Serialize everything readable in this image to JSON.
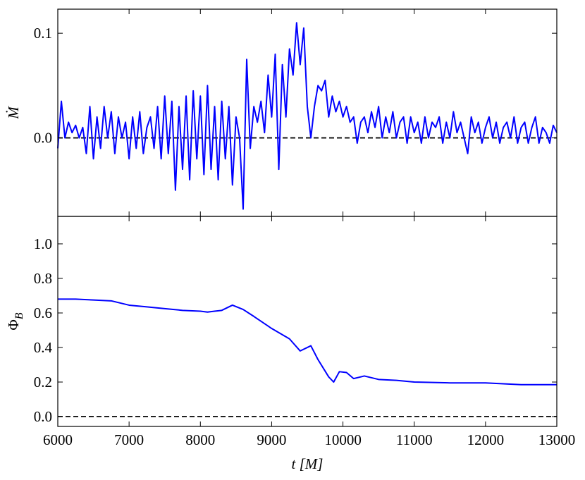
{
  "chart_data": [
    {
      "type": "line",
      "ylabel": "Ṁ",
      "xtick_labels": false,
      "hline": 0,
      "xlim": [
        6000,
        13000
      ],
      "xticks": [
        6000,
        7000,
        8000,
        9000,
        10000,
        11000,
        12000,
        13000
      ],
      "ylim": [
        -0.075,
        0.123
      ],
      "yticks": [
        {
          "value": 0,
          "label": "0.0"
        },
        0.1
      ],
      "series": [
        {
          "color": "#0000ff",
          "x": [
            6000,
            6050,
            6100,
            6150,
            6200,
            6250,
            6300,
            6350,
            6400,
            6450,
            6500,
            6550,
            6600,
            6650,
            6700,
            6750,
            6800,
            6850,
            6900,
            6950,
            7000,
            7050,
            7100,
            7150,
            7200,
            7250,
            7300,
            7350,
            7400,
            7450,
            7500,
            7550,
            7600,
            7650,
            7700,
            7750,
            7800,
            7850,
            7900,
            7950,
            8000,
            8050,
            8100,
            8150,
            8200,
            8250,
            8300,
            8350,
            8400,
            8450,
            8500,
            8550,
            8600,
            8650,
            8700,
            8750,
            8800,
            8850,
            8900,
            8950,
            9000,
            9050,
            9100,
            9150,
            9200,
            9250,
            9300,
            9350,
            9400,
            9450,
            9500,
            9550,
            9600,
            9650,
            9700,
            9750,
            9800,
            9850,
            9900,
            9950,
            10000,
            10050,
            10100,
            10150,
            10200,
            10250,
            10300,
            10350,
            10400,
            10450,
            10500,
            10550,
            10600,
            10650,
            10700,
            10750,
            10800,
            10850,
            10900,
            10950,
            11000,
            11050,
            11100,
            11150,
            11200,
            11250,
            11300,
            11350,
            11400,
            11450,
            11500,
            11550,
            11600,
            11650,
            11700,
            11750,
            11800,
            11850,
            11900,
            11950,
            12000,
            12050,
            12100,
            12150,
            12200,
            12250,
            12300,
            12350,
            12400,
            12450,
            12500,
            12550,
            12600,
            12650,
            12700,
            12750,
            12800,
            12850,
            12900,
            12950,
            13000
          ],
          "values": [
            -0.01,
            0.035,
            0.0,
            0.015,
            0.005,
            0.012,
            0.0,
            0.01,
            -0.015,
            0.03,
            -0.02,
            0.02,
            -0.01,
            0.03,
            0.0,
            0.025,
            -0.015,
            0.02,
            0.0,
            0.015,
            -0.02,
            0.02,
            -0.01,
            0.025,
            -0.015,
            0.01,
            0.02,
            -0.01,
            0.03,
            -0.02,
            0.04,
            -0.015,
            0.035,
            -0.05,
            0.03,
            -0.03,
            0.04,
            -0.04,
            0.045,
            -0.02,
            0.04,
            -0.035,
            0.05,
            -0.03,
            0.03,
            -0.04,
            0.035,
            -0.02,
            0.03,
            -0.045,
            0.02,
            0.0,
            -0.068,
            0.075,
            -0.01,
            0.03,
            0.015,
            0.035,
            0.005,
            0.06,
            0.02,
            0.08,
            -0.03,
            0.07,
            0.02,
            0.085,
            0.06,
            0.11,
            0.07,
            0.105,
            0.03,
            0.0,
            0.03,
            0.05,
            0.045,
            0.055,
            0.02,
            0.04,
            0.025,
            0.035,
            0.02,
            0.03,
            0.015,
            0.02,
            -0.005,
            0.015,
            0.02,
            0.005,
            0.025,
            0.01,
            0.03,
            0.0,
            0.02,
            0.005,
            0.025,
            0.0,
            0.015,
            0.02,
            -0.005,
            0.02,
            0.005,
            0.015,
            -0.005,
            0.02,
            0.0,
            0.015,
            0.01,
            0.02,
            -0.005,
            0.015,
            0.0,
            0.025,
            0.005,
            0.015,
            0.0,
            -0.015,
            0.02,
            0.005,
            0.015,
            -0.005,
            0.01,
            0.02,
            0.0,
            0.015,
            -0.005,
            0.01,
            0.015,
            0.0,
            0.02,
            -0.005,
            0.01,
            0.015,
            -0.005,
            0.01,
            0.02,
            -0.005,
            0.01,
            0.005,
            -0.005,
            0.012,
            0.005
          ]
        }
      ]
    },
    {
      "type": "line",
      "ylabel": "Φ",
      "ylabel_subscript": "B",
      "xlabel": "t [M]",
      "xtick_labels": true,
      "hline": 0,
      "xlim": [
        6000,
        13000
      ],
      "xticks": [
        6000,
        7000,
        8000,
        9000,
        10000,
        11000,
        12000,
        13000
      ],
      "ylim": [
        -0.057,
        1.159
      ],
      "yticks": [
        {
          "value": 0,
          "label": "0.0"
        },
        0.2,
        0.4,
        0.6,
        0.8,
        {
          "value": 1,
          "label": "1.0"
        }
      ],
      "series": [
        {
          "color": "#0000ff",
          "x": [
            6000,
            6250,
            6500,
            6750,
            7000,
            7250,
            7500,
            7750,
            8000,
            8100,
            8200,
            8300,
            8450,
            8600,
            8750,
            9000,
            9250,
            9400,
            9550,
            9650,
            9800,
            9870,
            9950,
            10050,
            10150,
            10300,
            10500,
            10750,
            11000,
            11500,
            12000,
            12500,
            13000
          ],
          "values": [
            0.68,
            0.68,
            0.675,
            0.67,
            0.645,
            0.635,
            0.625,
            0.615,
            0.61,
            0.605,
            0.61,
            0.615,
            0.645,
            0.62,
            0.58,
            0.51,
            0.45,
            0.38,
            0.41,
            0.33,
            0.23,
            0.2,
            0.26,
            0.255,
            0.22,
            0.235,
            0.215,
            0.21,
            0.2,
            0.195,
            0.195,
            0.185,
            0.185
          ]
        }
      ]
    }
  ]
}
